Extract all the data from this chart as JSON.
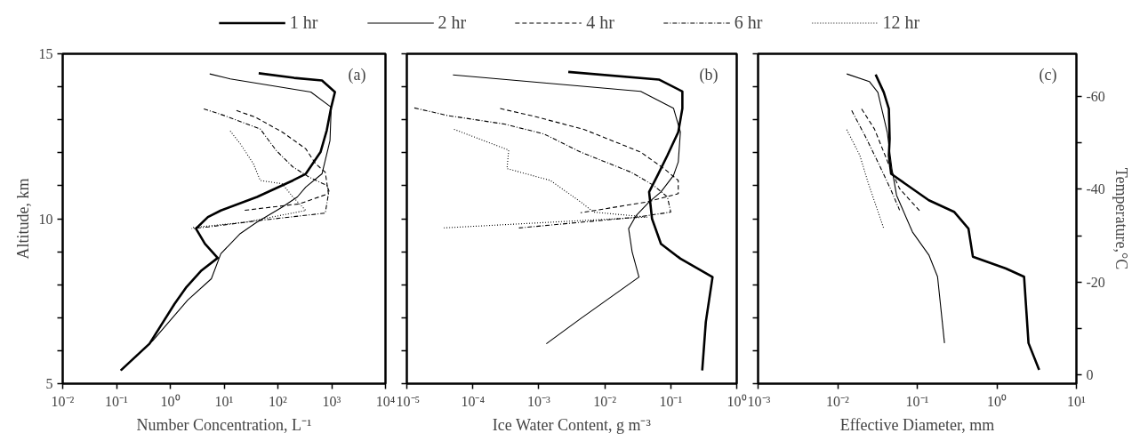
{
  "chart_data": [
    {
      "type": "line",
      "xlabel": "Number Concentration, L⁻¹",
      "ylabel": "Altitude, km",
      "annotations": [
        "(a)"
      ],
      "log": "x",
      "legend": "top",
      "xlim": [
        0.01,
        10000
      ],
      "xticks": [
        {
          "value": 0.01,
          "label": "10⁻²"
        },
        {
          "value": 0.1,
          "label": "10⁻¹"
        },
        {
          "value": 1,
          "label": "10⁰"
        },
        {
          "value": 10,
          "label": "10¹"
        },
        {
          "value": 100,
          "label": "10²"
        },
        {
          "value": 1000,
          "label": "10³"
        },
        {
          "value": 10000,
          "label": "10⁴"
        }
      ],
      "ylim": [
        5,
        15
      ],
      "yticks": [
        5,
        {
          "value": 6,
          "label": null
        },
        {
          "value": 7,
          "label": null
        },
        {
          "value": 8,
          "label": null
        },
        {
          "value": 9,
          "label": null
        },
        10,
        {
          "value": 11,
          "label": null
        },
        {
          "value": 12,
          "label": null
        },
        {
          "value": 13,
          "label": null
        },
        {
          "value": 14,
          "label": null
        },
        15
      ],
      "series": [
        {
          "name": "1 hr",
          "color": "#000000",
          "line_style": "solid",
          "x": [
            44,
            200,
            660,
            1150,
            980,
            810,
            620,
            330,
            190,
            41,
            8.7,
            5.0,
            3.0,
            4.4,
            7.6,
            3.8,
            2.0,
            1.2,
            0.41,
            0.12
          ],
          "values": [
            14.41,
            14.27,
            14.19,
            13.84,
            13.38,
            12.68,
            12.02,
            11.36,
            11.16,
            10.66,
            10.25,
            10.05,
            9.7,
            9.24,
            8.81,
            8.43,
            7.93,
            7.42,
            6.21,
            5.4
          ]
        },
        {
          "name": "2 hr",
          "color": "#000000",
          "line_style": "solid",
          "x": [
            5.4,
            13,
            410,
            980,
            930,
            660,
            330,
            230,
            120,
            41,
            20,
            8.7,
            5.8,
            2.1,
            0.47,
            0.12
          ],
          "values": [
            14.39,
            14.24,
            13.84,
            13.38,
            12.37,
            11.36,
            10.96,
            10.66,
            10.35,
            9.9,
            9.55,
            8.94,
            8.18,
            7.53,
            6.3,
            5.4
          ]
        },
        {
          "name": "4 hr",
          "color": "#000000",
          "line_style": "dashed",
          "x": [
            17,
            38,
            120,
            330,
            500,
            760,
            870,
            250,
            41,
            23
          ],
          "values": [
            13.28,
            13.08,
            12.63,
            12.12,
            11.67,
            11.41,
            10.76,
            10.45,
            10.3,
            10.25
          ]
        },
        {
          "name": "6 hr",
          "color": "#000000",
          "line_style": "dashdot",
          "x": [
            4.2,
            10,
            47,
            93,
            190,
            380,
            810,
            890,
            760,
            47,
            5.0,
            2.5
          ],
          "values": [
            13.33,
            13.13,
            12.72,
            12.07,
            11.57,
            11.26,
            11.01,
            10.85,
            10.17,
            9.95,
            9.75,
            9.7
          ]
        },
        {
          "name": "12 hr",
          "color": "#000000",
          "line_style": "dotted",
          "x": [
            13,
            20,
            35,
            47,
            120,
            190,
            330,
            26,
            2.5
          ],
          "values": [
            12.66,
            12.27,
            11.67,
            11.16,
            11.06,
            10.66,
            10.25,
            9.9,
            9.73
          ]
        }
      ]
    },
    {
      "type": "line",
      "xlabel": "Ice Water Content, g m⁻³",
      "annotations": [
        "(b)"
      ],
      "log": "x",
      "xlim": [
        1e-05,
        1
      ],
      "xticks": [
        {
          "value": 1e-05,
          "label": "10⁻⁵"
        },
        {
          "value": 0.0001,
          "label": "10⁻⁴"
        },
        {
          "value": 0.001,
          "label": "10⁻³"
        },
        {
          "value": 0.01,
          "label": "10⁻²"
        },
        {
          "value": 0.1,
          "label": "10⁻¹"
        },
        {
          "value": 1,
          "label": "10⁰"
        }
      ],
      "ylim": [
        5,
        15
      ],
      "tick_labels": "x",
      "series": [
        {
          "color": "#000000",
          "line_style": "solid",
          "x": [
            0.0028,
            0.066,
            0.15,
            0.15,
            0.13,
            0.089,
            0.063,
            0.047,
            0.052,
            0.071,
            0.14,
            0.43,
            0.34,
            0.3
          ],
          "values": [
            14.45,
            14.22,
            13.86,
            13.34,
            12.63,
            11.92,
            11.31,
            10.81,
            10.0,
            9.24,
            8.79,
            8.23,
            6.87,
            5.4
          ]
        },
        {
          "color": "#000000",
          "line_style": "solid",
          "x": [
            5e-05,
            0.035,
            0.11,
            0.14,
            0.13,
            0.11,
            0.071,
            0.047,
            0.03,
            0.023,
            0.026,
            0.033,
            0.0043,
            0.0013
          ],
          "values": [
            14.36,
            13.86,
            13.35,
            12.63,
            11.72,
            11.31,
            10.81,
            10.51,
            10.1,
            9.7,
            8.99,
            8.23,
            6.97,
            6.21
          ]
        },
        {
          "color": "#000000",
          "line_style": "dashed",
          "x": [
            0.00026,
            0.00083,
            0.0048,
            0.035,
            0.079,
            0.13,
            0.13,
            0.044,
            0.0043
          ],
          "values": [
            13.34,
            13.11,
            12.71,
            12.02,
            11.52,
            11.16,
            10.76,
            10.51,
            10.18
          ]
        },
        {
          "color": "#000000",
          "line_style": "dashdot",
          "x": [
            1.3e-05,
            4.1e-05,
            0.0003,
            0.0012,
            0.0043,
            0.025,
            0.055,
            0.089,
            0.1,
            0.031,
            0.0005
          ],
          "values": [
            13.36,
            13.13,
            12.87,
            12.57,
            12.02,
            11.41,
            11.01,
            10.66,
            10.2,
            10.05,
            9.72
          ]
        },
        {
          "color": "#000000",
          "line_style": "dotted",
          "x": [
            5.2e-05,
            0.00035,
            0.00033,
            0.0015,
            0.0043,
            0.0068,
            0.044,
            3.5e-05
          ],
          "values": [
            12.71,
            12.08,
            11.52,
            11.16,
            10.51,
            10.2,
            10.05,
            9.72
          ]
        }
      ]
    },
    {
      "type": "line",
      "xlabel": "Effective Diameter, mm",
      "y2label": "Temperature,°C",
      "annotations": [
        "(c)"
      ],
      "log": "x",
      "xlim": [
        0.001,
        10
      ],
      "xticks": [
        {
          "value": 0.001,
          "label": "10⁻³"
        },
        {
          "value": 0.01,
          "label": "10⁻²"
        },
        {
          "value": 0.1,
          "label": "10⁻¹"
        },
        {
          "value": 1,
          "label": "10⁰"
        },
        {
          "value": 10,
          "label": "10¹"
        }
      ],
      "ylim": [
        5,
        15
      ],
      "tick_labels": "x",
      "y2lim": [
        1.9,
        -69.2
      ],
      "y2ticks": [
        {
          "value": 0,
          "label": "0"
        },
        {
          "value": -10,
          "label": null
        },
        {
          "value": -20,
          "label": "-20"
        },
        {
          "value": -30,
          "label": null
        },
        {
          "value": -40,
          "label": "-40"
        },
        {
          "value": -50,
          "label": null
        },
        {
          "value": -60,
          "label": "-60"
        }
      ],
      "series": [
        {
          "color": "#000000",
          "line_style": "solid",
          "x": [
            0.03,
            0.038,
            0.044,
            0.045,
            0.044,
            0.047,
            0.14,
            0.29,
            0.44,
            0.5,
            1.3,
            2.2,
            2.5,
            3.4
          ],
          "values": [
            14.37,
            13.83,
            13.33,
            12.42,
            11.92,
            11.36,
            10.56,
            10.21,
            9.7,
            8.85,
            8.49,
            8.24,
            6.23,
            5.42
          ]
        },
        {
          "color": "#000000",
          "line_style": "solid",
          "x": [
            0.013,
            0.025,
            0.032,
            0.042,
            0.048,
            0.055,
            0.087,
            0.14,
            0.18,
            0.22
          ],
          "values": [
            14.39,
            14.16,
            13.83,
            12.62,
            11.52,
            10.71,
            9.6,
            8.9,
            8.24,
            6.23
          ]
        },
        {
          "color": "#000000",
          "line_style": "dashed",
          "x": [
            0.02,
            0.029,
            0.046,
            0.06,
            0.11
          ],
          "values": [
            13.33,
            12.72,
            11.52,
            10.91,
            10.21
          ]
        },
        {
          "color": "#000000",
          "line_style": "dashdot",
          "x": [
            0.015,
            0.022,
            0.032,
            0.046,
            0.06
          ],
          "values": [
            13.28,
            12.52,
            11.72,
            10.91,
            10.26
          ]
        },
        {
          "color": "#000000",
          "line_style": "dotted",
          "x": [
            0.013,
            0.019,
            0.024,
            0.038
          ],
          "values": [
            12.7,
            11.92,
            11.11,
            9.7
          ]
        }
      ]
    }
  ]
}
